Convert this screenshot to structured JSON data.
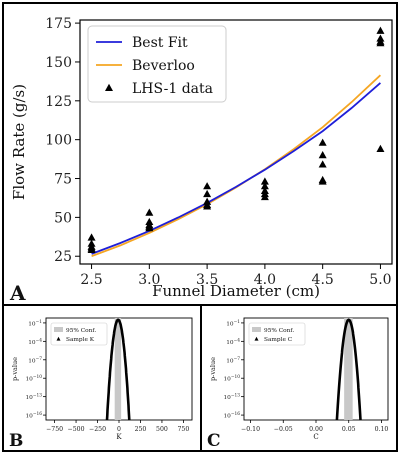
{
  "chart_data": [
    {
      "type": "line",
      "panel": "A",
      "xlabel": "Funnel Diameter (cm)",
      "ylabel": "Flow Rate (g/s)",
      "xlim": [
        2.4,
        5.1
      ],
      "ylim": [
        20,
        177
      ],
      "xticks": [
        "2.5",
        "3.0",
        "3.5",
        "4.0",
        "4.5",
        "5.0"
      ],
      "yticks": [
        "25",
        "50",
        "75",
        "100",
        "125",
        "150",
        "175"
      ],
      "grid": false,
      "legend_position": "top-left",
      "series": [
        {
          "name": "Best Fit",
          "kind": "line",
          "color": "#1f1fd8",
          "x": [
            2.5,
            2.75,
            3.0,
            3.25,
            3.5,
            3.75,
            4.0,
            4.25,
            4.5,
            4.75,
            5.0
          ],
          "y": [
            26.5,
            33.5,
            41.3,
            49.9,
            59.3,
            69.6,
            80.7,
            92.7,
            105.5,
            120.4,
            136.5
          ]
        },
        {
          "name": "Beverloo",
          "kind": "line",
          "color": "#f5a623",
          "x": [
            2.5,
            2.75,
            3.0,
            3.25,
            3.5,
            3.75,
            4.0,
            4.25,
            4.5,
            4.75,
            5.0
          ],
          "y": [
            25.0,
            32.0,
            40.0,
            48.8,
            58.5,
            69.2,
            81.0,
            93.9,
            108.0,
            124.2,
            141.5
          ]
        },
        {
          "name": "LHS-1 data",
          "kind": "scatter",
          "color": "#000000",
          "x": [
            2.5,
            2.5,
            2.5,
            2.5,
            2.5,
            3.0,
            3.0,
            3.0,
            3.0,
            3.0,
            3.5,
            3.5,
            3.5,
            3.5,
            3.5,
            4.0,
            4.0,
            4.0,
            4.0,
            4.0,
            4.5,
            4.5,
            4.5,
            4.5,
            4.5,
            5.0,
            5.0,
            5.0,
            5.0,
            5.0
          ],
          "y": [
            37,
            33,
            31,
            30,
            29,
            53,
            47,
            45,
            44,
            43,
            70,
            65,
            60,
            58,
            57,
            73,
            70,
            67,
            65,
            63,
            98,
            90,
            84,
            74,
            73,
            170,
            165,
            163,
            162,
            94
          ]
        }
      ]
    },
    {
      "type": "area",
      "panel": "B",
      "xlabel": "K",
      "ylabel": "p-value",
      "xlim": [
        -850,
        850
      ],
      "xticks": [
        "−750",
        "−500",
        "−250",
        "0",
        "250",
        "500",
        "750"
      ],
      "yscale": "log",
      "yticks": [
        "10<sup>−1</sup>",
        "10<sup>−4</sup>",
        "10<sup>−7</sup>",
        "10<sup>−10</sup>",
        "10<sup>−13</sup>",
        "10<sup>−16</sup>"
      ],
      "legend_position": "top-left",
      "series": [
        {
          "name": "95% Conf.",
          "kind": "band",
          "color": "#c8c8c8",
          "x": [
            -50,
            25
          ]
        },
        {
          "name": "Sample K",
          "kind": "curve",
          "color": "#000000",
          "center": -10,
          "halfwidth_at_bottom": 130,
          "peak_log10": -0.5,
          "floor_log10": -16.8
        }
      ]
    },
    {
      "type": "area",
      "panel": "C",
      "xlabel": "C",
      "ylabel": "p-value",
      "xlim": [
        -0.11,
        0.11
      ],
      "xticks": [
        "−0.10",
        "−0.05",
        "0.00",
        "0.05",
        "0.10"
      ],
      "yscale": "log",
      "yticks": [
        "10<sup>−1</sup>",
        "10<sup>−4</sup>",
        "10<sup>−7</sup>",
        "10<sup>−10</sup>",
        "10<sup>−13</sup>",
        "10<sup>−16</sup>"
      ],
      "legend_position": "top-left",
      "series": [
        {
          "name": "95% Conf.",
          "kind": "band",
          "color": "#c8c8c8",
          "x": [
            0.043,
            0.056
          ]
        },
        {
          "name": "Sample C",
          "kind": "curve",
          "color": "#000000",
          "center": 0.05,
          "halfwidth_at_bottom": 0.018,
          "peak_log10": -0.5,
          "floor_log10": -16.8
        }
      ]
    }
  ]
}
